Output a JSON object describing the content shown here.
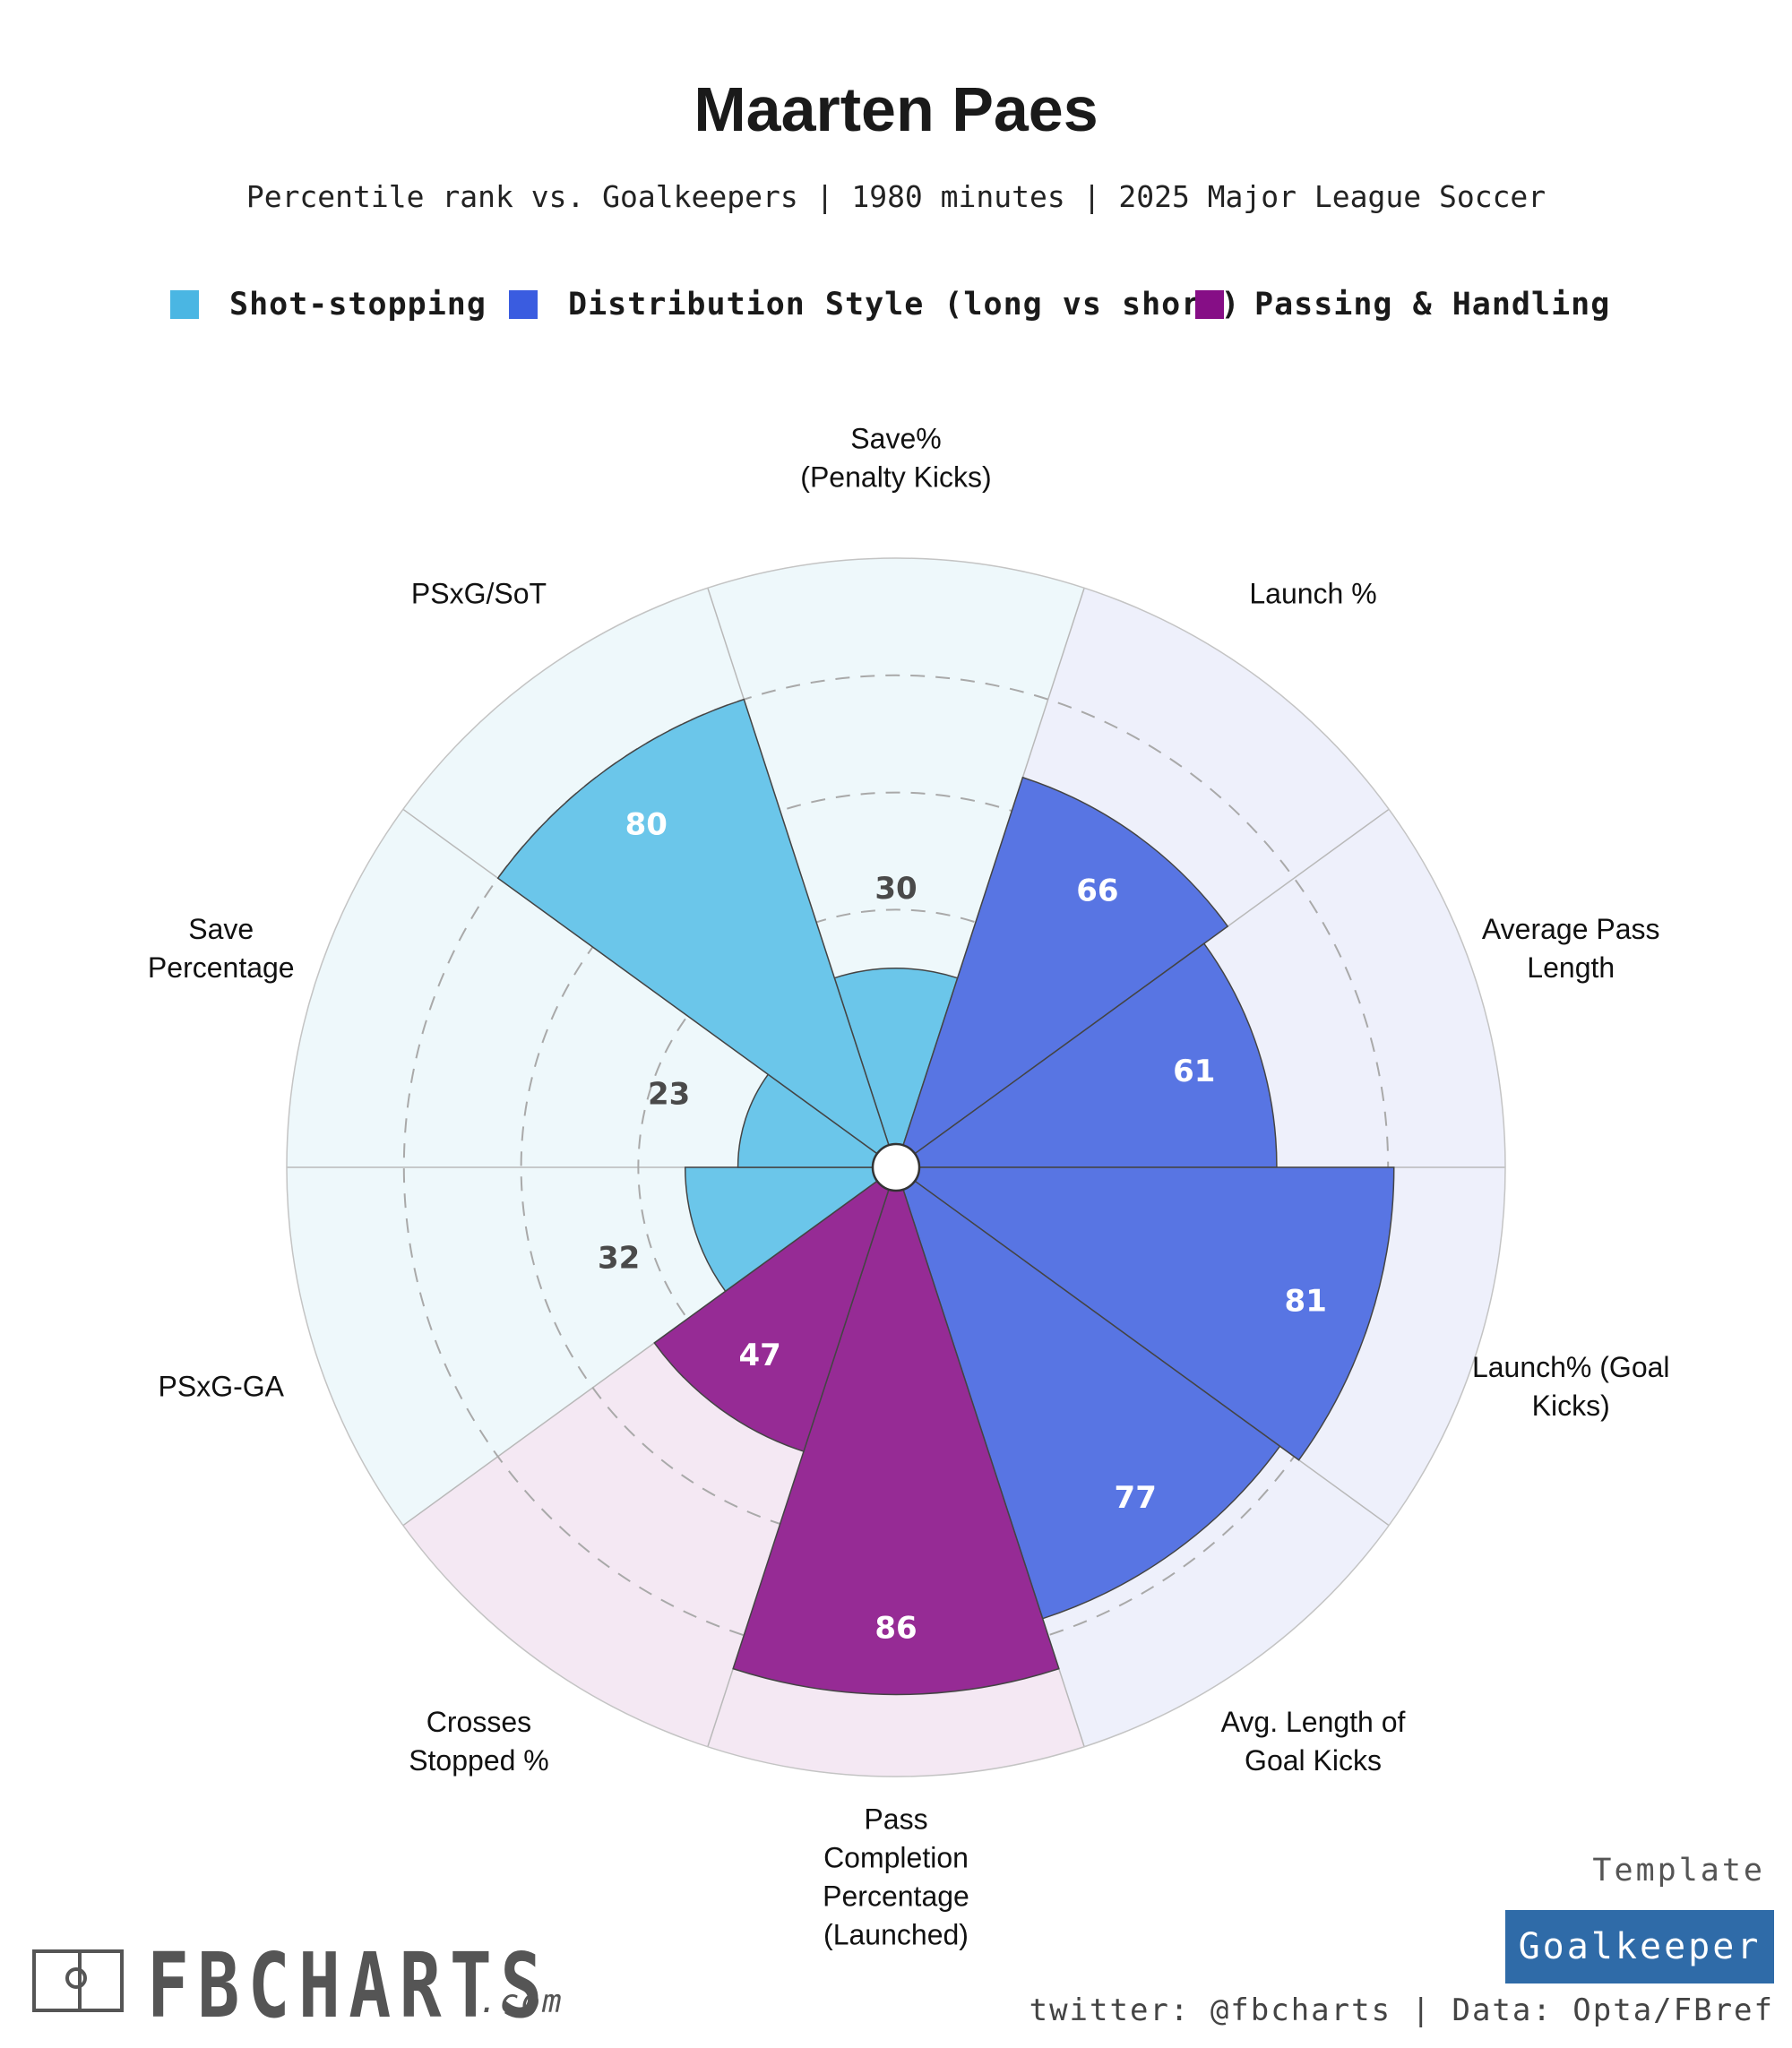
{
  "title": "Maarten Paes",
  "subtitle": "Percentile rank vs. Goalkeepers | 1980 minutes | 2025 Major League Soccer",
  "legend": [
    {
      "label": "Shot-stopping",
      "color": "#4ab6e3"
    },
    {
      "label": "Distribution Style (long vs short)",
      "color": "#3a5ce0"
    },
    {
      "label": "Passing & Handling",
      "color": "#860e86"
    }
  ],
  "chart_data": {
    "type": "polar-bar",
    "title": "Maarten Paes",
    "range": [
      0,
      100
    ],
    "gridlines": [
      20,
      40,
      60,
      80
    ],
    "categories": [
      {
        "label": "Save%\n(Penalty Kicks)",
        "value": 30,
        "group": "Shot-stopping"
      },
      {
        "label": "Launch %",
        "value": 66,
        "group": "Distribution Style (long vs short)"
      },
      {
        "label": "Average Pass\nLength",
        "value": 61,
        "group": "Distribution Style (long vs short)"
      },
      {
        "label": "Launch% (Goal\nKicks)",
        "value": 81,
        "group": "Distribution Style (long vs short)"
      },
      {
        "label": "Avg. Length of\nGoal Kicks",
        "value": 77,
        "group": "Distribution Style (long vs short)"
      },
      {
        "label": "Pass\nCompletion\nPercentage\n(Launched)",
        "value": 86,
        "group": "Passing & Handling"
      },
      {
        "label": "Crosses\nStopped %",
        "value": 47,
        "group": "Passing & Handling"
      },
      {
        "label": "PSxG-GA",
        "value": 32,
        "group": "Shot-stopping"
      },
      {
        "label": "Save\nPercentage",
        "value": 23,
        "group": "Shot-stopping"
      },
      {
        "label": "PSxG/SoT",
        "value": 80,
        "group": "Shot-stopping"
      }
    ]
  },
  "colors": {
    "Shot-stopping": {
      "fill": "#6bc6ea",
      "bg": "#eef8fb",
      "text_dark": "#4a4a4a"
    },
    "Distribution Style (long vs short)": {
      "fill": "#5875e3",
      "bg": "#eef0fb"
    },
    "Passing & Handling": {
      "fill": "#962b95",
      "bg": "#f4e8f3"
    }
  },
  "footer": {
    "brand": "FBCHARTS",
    "brand_suffix": ".com",
    "template_label": "Template",
    "template_name": "Goalkeeper",
    "credits": "twitter: @fbcharts | Data: Opta/FBref"
  }
}
